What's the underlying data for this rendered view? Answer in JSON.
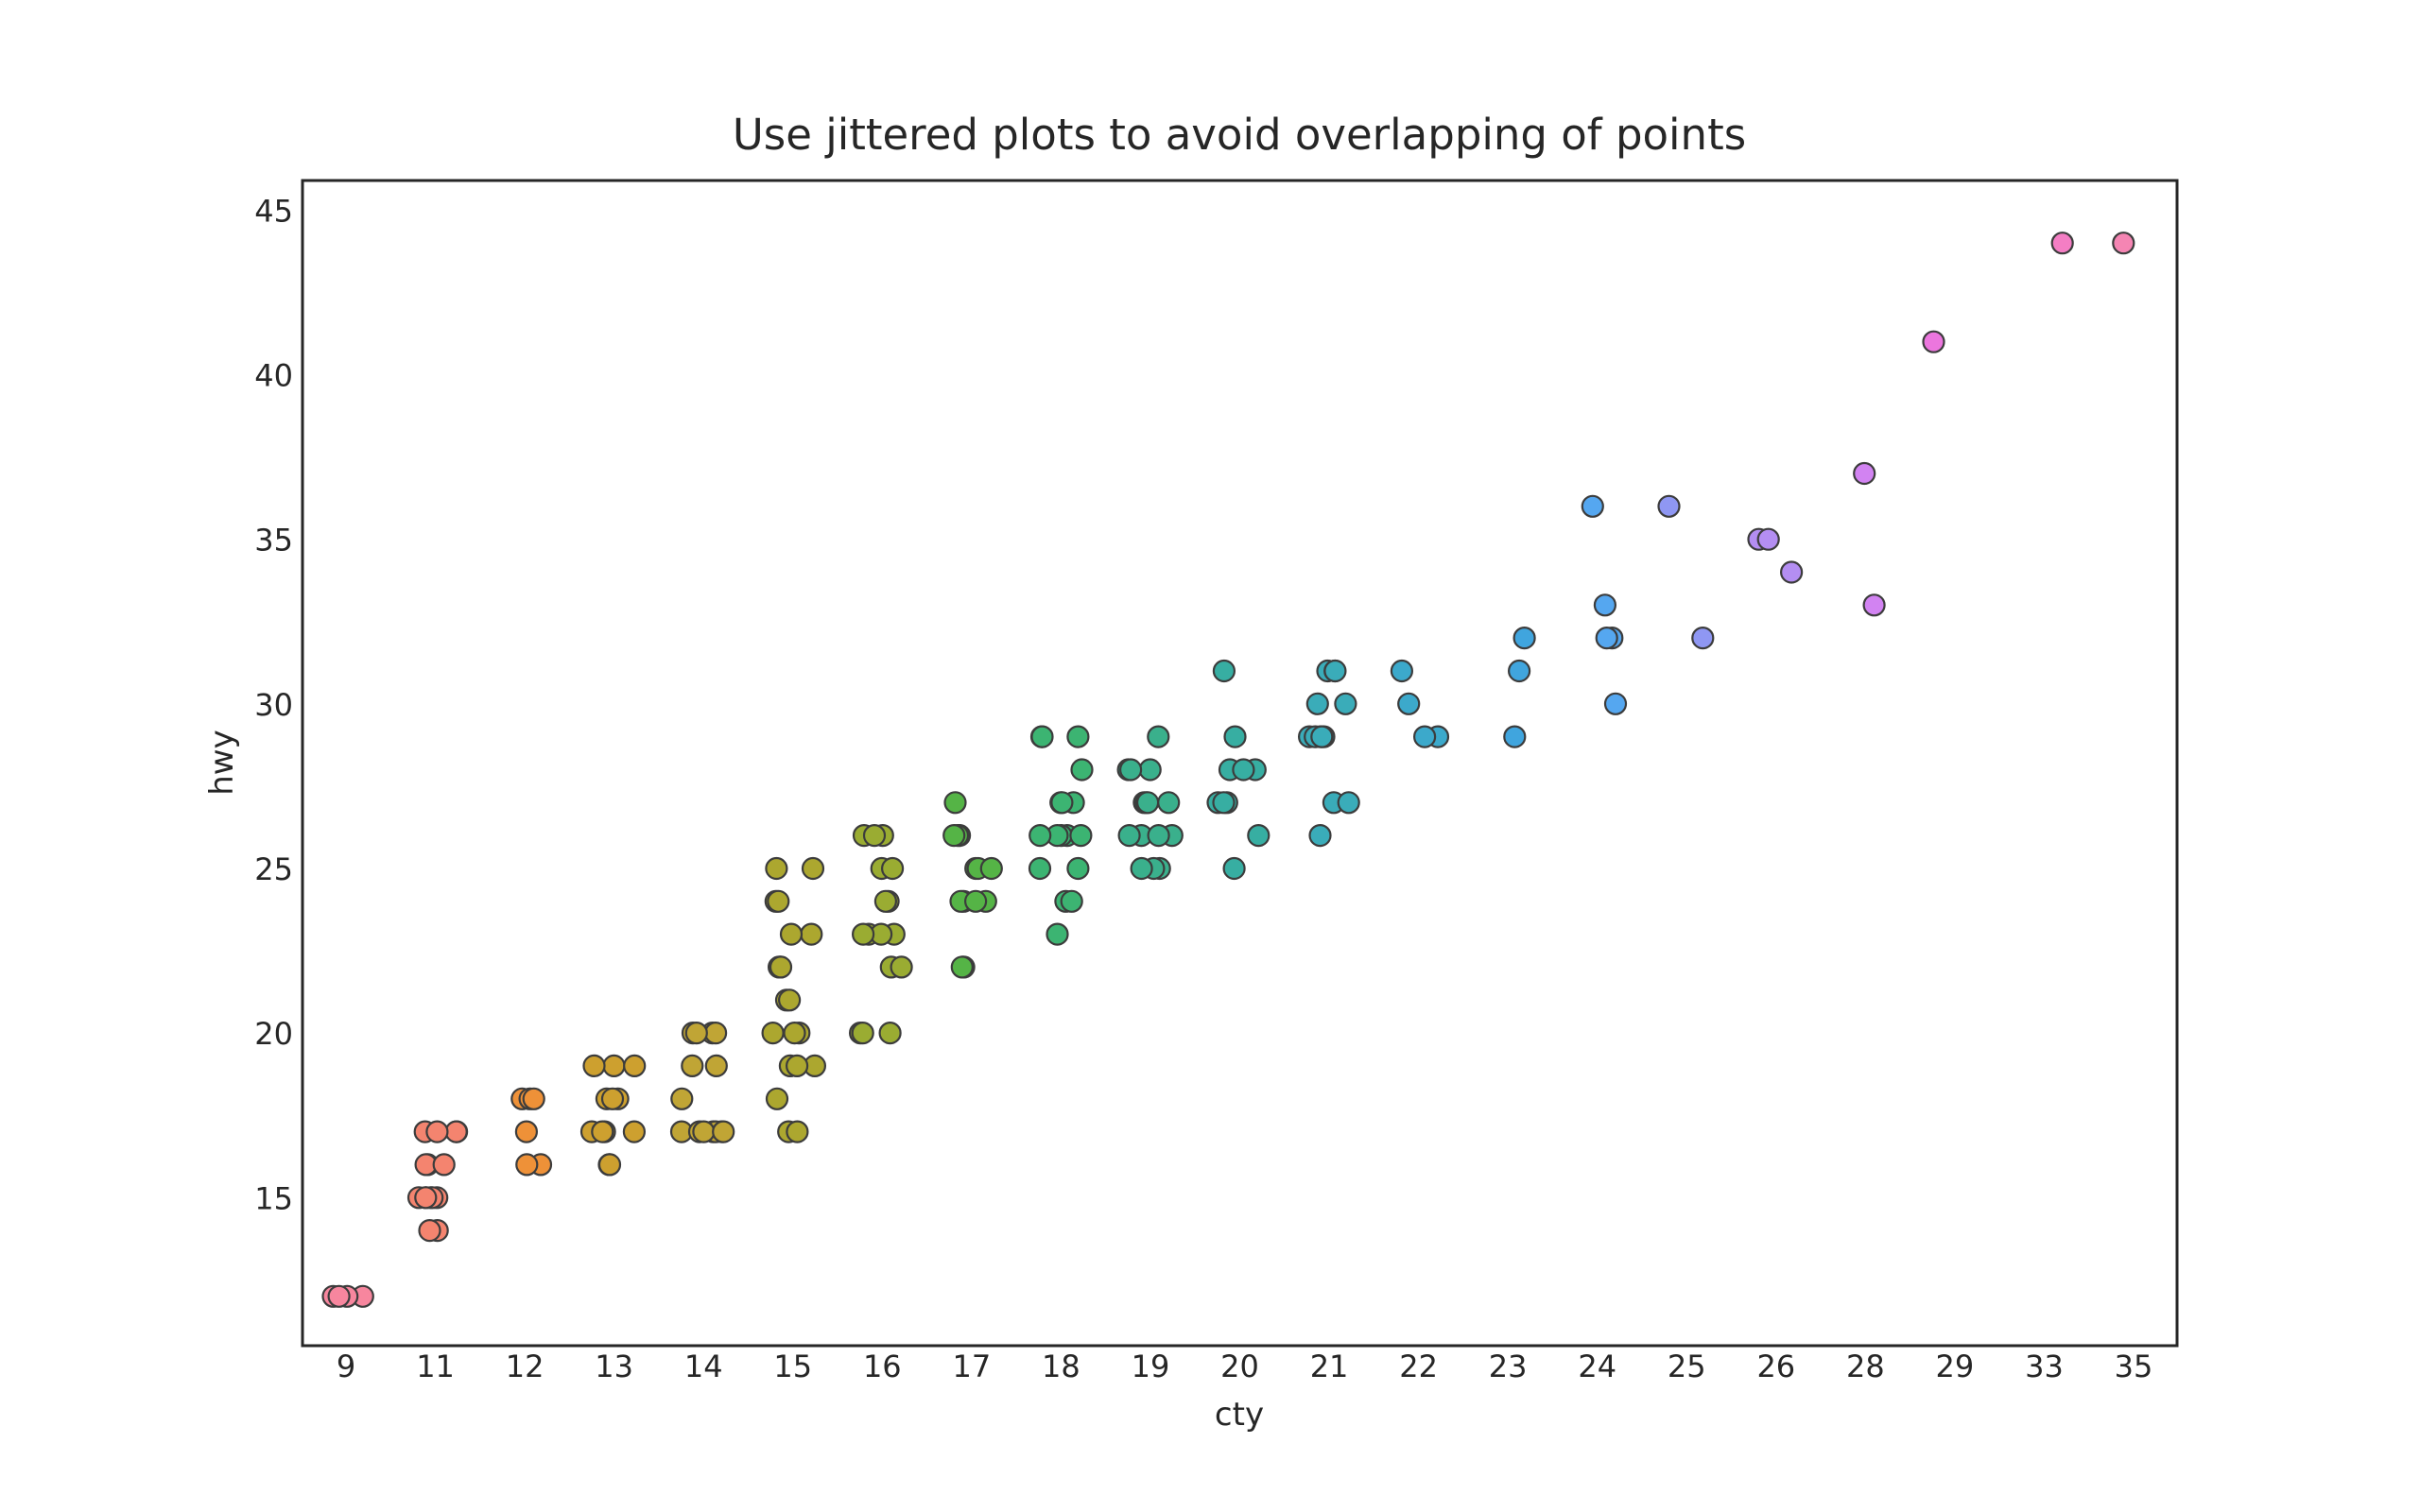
{
  "window": {
    "background": "#ffffff"
  },
  "chart_data": {
    "type": "scatter",
    "variant": "jittered_stripplot",
    "title": "Use jittered plots to avoid overlapping of points",
    "xlabel": "cty",
    "ylabel": "hwy",
    "x_categories": [
      "9",
      "11",
      "12",
      "13",
      "14",
      "15",
      "16",
      "17",
      "18",
      "19",
      "20",
      "21",
      "22",
      "23",
      "24",
      "25",
      "26",
      "28",
      "29",
      "33",
      "35"
    ],
    "y_ticks": [
      15,
      20,
      25,
      30,
      35,
      40,
      45
    ],
    "ylim": [
      10.5,
      45.9
    ],
    "grid": false,
    "legend": "none",
    "text_color": "#262626",
    "spine_color": "#262626",
    "marker": {
      "radius": 11,
      "edge_color": "#3c3c3c",
      "edge_width": 2.2,
      "jitter": 0.25
    },
    "palette": {
      "9": "#F7869E",
      "11": "#F4846F",
      "12": "#EE9138",
      "13": "#CDA02F",
      "14": "#C0A535",
      "15": "#ACA72F",
      "16": "#9AAC32",
      "17": "#55B446",
      "18": "#3CB472",
      "19": "#3AB08C",
      "20": "#37AEA2",
      "21": "#3AACB9",
      "22": "#3CA9CB",
      "23": "#40A5DE",
      "24": "#55A7F0",
      "25": "#8F97F3",
      "26": "#B48EF2",
      "28": "#D283F2",
      "29": "#EC76DE",
      "33": "#F47EC4",
      "35": "#F585B3"
    },
    "series": [
      {
        "cty": 9,
        "hwy_counts": {
          "12": 4
        }
      },
      {
        "cty": 11,
        "hwy_counts": {
          "14": 2,
          "15": 6,
          "16": 3,
          "17": 4
        }
      },
      {
        "cty": 12,
        "hwy_counts": {
          "16": 2,
          "17": 1,
          "18": 3
        }
      },
      {
        "cty": 13,
        "hwy_counts": {
          "16": 2,
          "17": 4,
          "18": 3,
          "19": 3
        }
      },
      {
        "cty": 14,
        "hwy_counts": {
          "17": 7,
          "18": 1,
          "19": 2,
          "20": 4
        }
      },
      {
        "cty": 15,
        "hwy_counts": {
          "17": 2,
          "18": 1,
          "19": 3,
          "20": 3,
          "21": 2,
          "22": 3,
          "23": 2,
          "24": 2,
          "25": 2
        }
      },
      {
        "cty": 16,
        "hwy_counts": {
          "20": 3,
          "22": 2,
          "23": 4,
          "24": 2,
          "25": 2,
          "26": 3
        }
      },
      {
        "cty": 17,
        "hwy_counts": {
          "22": 2,
          "24": 4,
          "25": 3,
          "26": 3,
          "27": 1
        }
      },
      {
        "cty": 18,
        "hwy_counts": {
          "23": 1,
          "24": 2,
          "25": 2,
          "26": 5,
          "27": 3,
          "28": 1,
          "29": 3
        }
      },
      {
        "cty": 19,
        "hwy_counts": {
          "25": 3,
          "26": 4,
          "27": 4,
          "28": 3,
          "29": 1
        }
      },
      {
        "cty": 20,
        "hwy_counts": {
          "25": 1,
          "26": 1,
          "27": 3,
          "28": 3,
          "29": 1,
          "31": 1
        }
      },
      {
        "cty": 21,
        "hwy_counts": {
          "26": 1,
          "27": 2,
          "29": 5,
          "30": 2,
          "31": 3
        }
      },
      {
        "cty": 22,
        "hwy_counts": {
          "29": 2,
          "30": 1,
          "31": 1
        }
      },
      {
        "cty": 23,
        "hwy_counts": {
          "29": 1,
          "31": 1,
          "32": 1
        }
      },
      {
        "cty": 24,
        "hwy_counts": {
          "30": 1,
          "32": 2,
          "33": 1,
          "36": 1
        }
      },
      {
        "cty": 25,
        "hwy_counts": {
          "32": 1,
          "36": 1
        }
      },
      {
        "cty": 26,
        "hwy_counts": {
          "34": 1,
          "35": 2
        }
      },
      {
        "cty": 28,
        "hwy_counts": {
          "33": 1,
          "37": 1
        }
      },
      {
        "cty": 29,
        "hwy_counts": {
          "41": 1
        }
      },
      {
        "cty": 33,
        "hwy_counts": {
          "44": 1
        }
      },
      {
        "cty": 35,
        "hwy_counts": {
          "44": 1
        }
      }
    ]
  }
}
